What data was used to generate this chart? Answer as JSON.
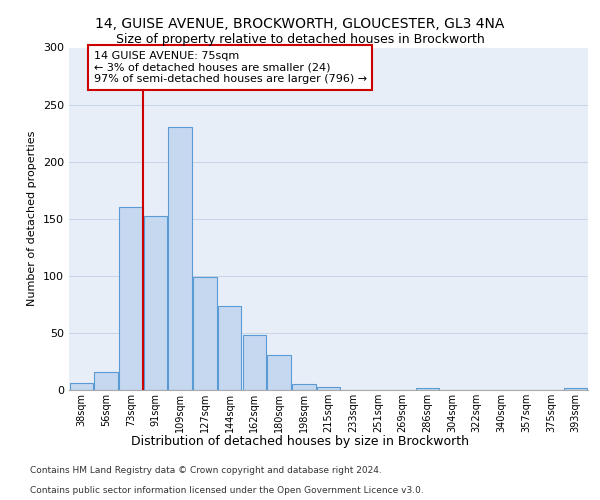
{
  "title1": "14, GUISE AVENUE, BROCKWORTH, GLOUCESTER, GL3 4NA",
  "title2": "Size of property relative to detached houses in Brockworth",
  "xlabel": "Distribution of detached houses by size in Brockworth",
  "ylabel": "Number of detached properties",
  "footer1": "Contains HM Land Registry data © Crown copyright and database right 2024.",
  "footer2": "Contains public sector information licensed under the Open Government Licence v3.0.",
  "bin_labels": [
    "38sqm",
    "56sqm",
    "73sqm",
    "91sqm",
    "109sqm",
    "127sqm",
    "144sqm",
    "162sqm",
    "180sqm",
    "198sqm",
    "215sqm",
    "233sqm",
    "251sqm",
    "269sqm",
    "286sqm",
    "304sqm",
    "322sqm",
    "340sqm",
    "357sqm",
    "375sqm",
    "393sqm"
  ],
  "bar_heights": [
    6,
    16,
    160,
    152,
    230,
    99,
    74,
    48,
    31,
    5,
    3,
    0,
    0,
    0,
    2,
    0,
    0,
    0,
    0,
    0,
    2
  ],
  "bar_color": "#c5d8f0",
  "bar_edge_color": "#5b9bd5",
  "vline_x": 2.5,
  "vline_color": "#cc0000",
  "annotation_text": "14 GUISE AVENUE: 75sqm\n← 3% of detached houses are smaller (24)\n97% of semi-detached houses are larger (796) →",
  "annotation_box_color": "#ffffff",
  "annotation_box_edge_color": "#cc0000",
  "ylim": [
    0,
    300
  ],
  "yticks": [
    0,
    50,
    100,
    150,
    200,
    250,
    300
  ],
  "plot_bg_color": "#e8eef8",
  "grid_color": "#c8d4e8"
}
